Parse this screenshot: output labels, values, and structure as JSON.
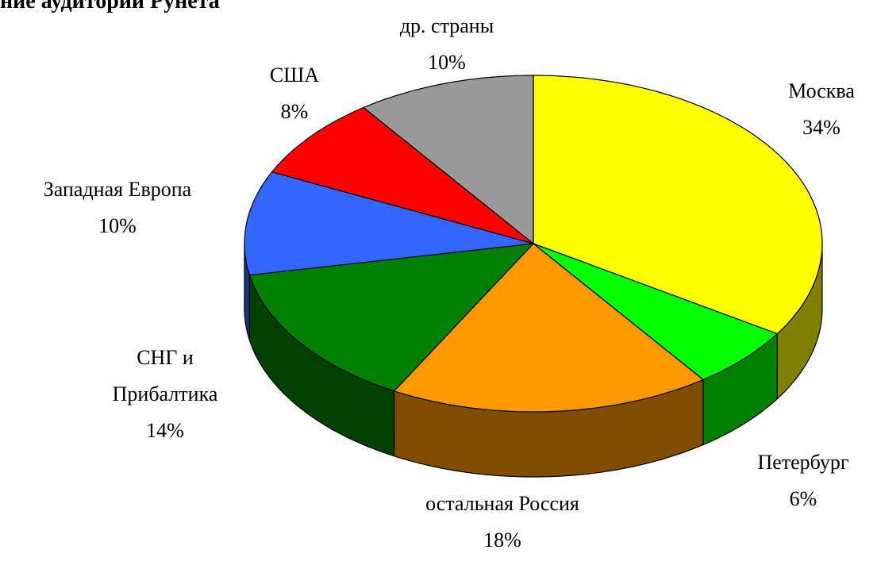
{
  "chart_data": {
    "type": "pie3d",
    "title": "ние аудитории Рунета",
    "categories": [
      "Москва",
      "Петербург",
      "остальная Россия",
      "СНГ и Прибалтика",
      "Западная Европа",
      "США",
      "др. страны"
    ],
    "values": [
      34,
      6,
      18,
      14,
      10,
      8,
      10
    ],
    "value_labels": [
      "34%",
      "6%",
      "18%",
      "14%",
      "10%",
      "8%",
      "10%"
    ],
    "colors": [
      "#ffff00",
      "#00ff00",
      "#ff9900",
      "#008000",
      "#3366ff",
      "#ff0000",
      "#999999"
    ]
  }
}
